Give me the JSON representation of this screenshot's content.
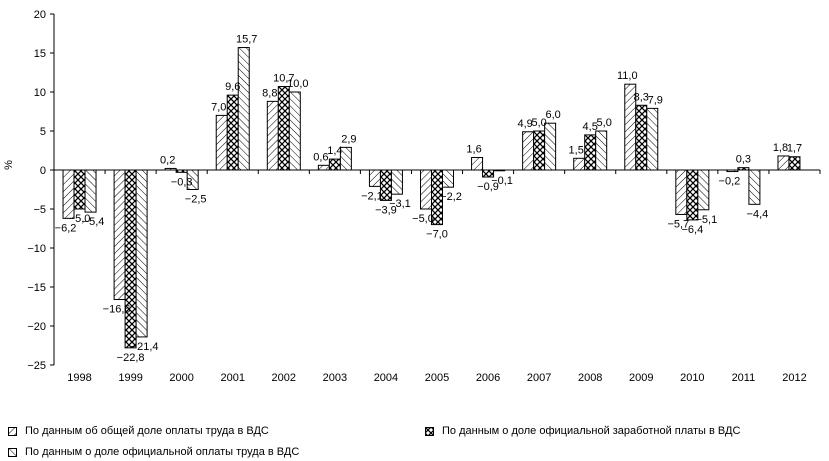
{
  "chart_data": {
    "type": "bar",
    "ylabel": "%",
    "ylim": [
      -25,
      20
    ],
    "yticks": [
      -25,
      -20,
      -15,
      -10,
      -5,
      0,
      5,
      10,
      15,
      20
    ],
    "grid": false,
    "legend_position": "bottom",
    "categories": [
      "1998",
      "1999",
      "2000",
      "2001",
      "2002",
      "2003",
      "2004",
      "2005",
      "2006",
      "2007",
      "2008",
      "2009",
      "2010",
      "2011",
      "2012"
    ],
    "series": [
      {
        "name": "По данным об общей доле оплаты труда в ВДС",
        "pattern": "diagonal",
        "values": [
          -6.2,
          -16.6,
          0.2,
          7.0,
          8.8,
          0.6,
          -2.1,
          -5.0,
          1.6,
          4.9,
          1.5,
          11.0,
          -5.7,
          -0.2,
          1.8
        ],
        "labels": [
          "−6,2",
          "−16,6",
          "0,2",
          "7,0",
          "8,8",
          "0,6",
          "−2,1",
          "−5,0",
          "1,6",
          "4,9",
          "1,5",
          "11,0",
          "−5,7",
          "−0,2",
          "1,8"
        ]
      },
      {
        "name": "По данным о доле официальной заработной платы в ВДС",
        "pattern": "crosshatch",
        "values": [
          -5.0,
          -22.8,
          -0.3,
          9.6,
          10.7,
          1.4,
          -3.9,
          -7.0,
          -0.9,
          5.0,
          4.5,
          8.3,
          -6.4,
          0.3,
          1.7
        ],
        "labels": [
          "−5,0",
          "−22,8",
          "−0,3",
          "9,6",
          "10,7",
          "1,4",
          "−3,9",
          "−7,0",
          "−0,9",
          "5,0",
          "4,5",
          "8,3",
          "−6,4",
          "0,3",
          "1,7"
        ]
      },
      {
        "name": "По данным о доле официальной оплаты труда в ВДС",
        "pattern": "diagonal-reverse",
        "values": [
          -5.4,
          -21.4,
          -2.5,
          15.7,
          10.0,
          2.9,
          -3.1,
          -2.2,
          -0.1,
          6.0,
          5.0,
          7.9,
          -5.1,
          -4.4,
          null
        ],
        "labels": [
          "−5,4",
          "−21,4",
          "−2,5",
          "15,7",
          "10,0",
          "2,9",
          "−3,1",
          "−2,2",
          "−0,1",
          "6,0",
          "5,0",
          "7,9",
          "−5,1",
          "−4,4",
          ""
        ]
      }
    ]
  }
}
